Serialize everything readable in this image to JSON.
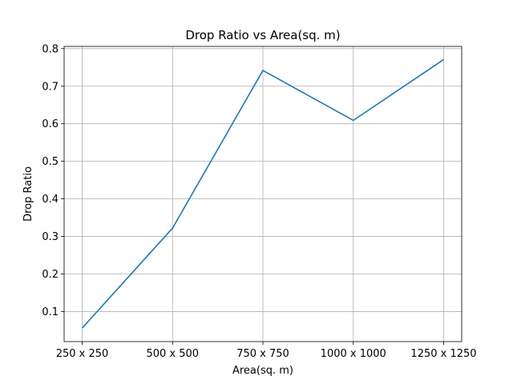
{
  "chart_data": {
    "type": "line",
    "title": "Drop Ratio  vs Area(sq. m)",
    "xlabel": "Area(sq. m)",
    "ylabel": "Drop Ratio",
    "categories": [
      "250 x 250",
      "500 x 500",
      "750 x 750",
      "1000 x 1000",
      "1250 x 1250"
    ],
    "series": [
      {
        "values": [
          0.056,
          0.322,
          0.742,
          0.609,
          0.771
        ],
        "color": "#1f77b4"
      }
    ],
    "ylim": [
      0.02,
      0.806
    ],
    "yticks": [
      "0.1",
      "0.2",
      "0.3",
      "0.4",
      "0.5",
      "0.6",
      "0.7",
      "0.8"
    ],
    "grid": true,
    "legend": "none"
  }
}
